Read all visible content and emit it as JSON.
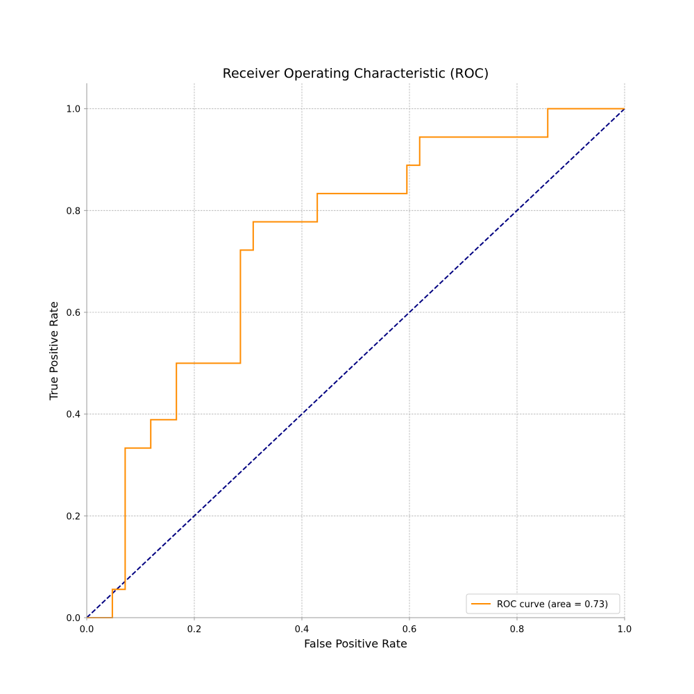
{
  "chart_data": {
    "type": "line",
    "title": "Receiver Operating Characteristic (ROC)",
    "xlabel": "False Positive Rate",
    "ylabel": "True Positive Rate",
    "xlim": [
      0.0,
      1.0
    ],
    "ylim": [
      0.0,
      1.05
    ],
    "xticks": [
      0.0,
      0.2,
      0.4,
      0.6,
      0.8,
      1.0
    ],
    "xtick_labels": [
      "0.0",
      "0.2",
      "0.4",
      "0.6",
      "0.8",
      "1.0"
    ],
    "yticks": [
      0.0,
      0.2,
      0.4,
      0.6,
      0.8,
      1.0
    ],
    "ytick_labels": [
      "0.0",
      "0.2",
      "0.4",
      "0.6",
      "0.8",
      "1.0"
    ],
    "grid": true,
    "legend_position": "lower-right",
    "series": [
      {
        "name": "ROC curve (area = 0.73)",
        "color": "#ff8c00",
        "style": "solid",
        "step": true,
        "x": [
          0.0,
          0.0476,
          0.0476,
          0.0714,
          0.0714,
          0.119,
          0.119,
          0.1667,
          0.1667,
          0.2857,
          0.2857,
          0.3095,
          0.3095,
          0.4286,
          0.4286,
          0.5952,
          0.5952,
          0.619,
          0.619,
          0.8571,
          0.8571,
          1.0
        ],
        "y": [
          0.0,
          0.0,
          0.0556,
          0.0556,
          0.3333,
          0.3333,
          0.3889,
          0.3889,
          0.5,
          0.5,
          0.7222,
          0.7222,
          0.7778,
          0.7778,
          0.8333,
          0.8333,
          0.8889,
          0.8889,
          0.9444,
          0.9444,
          1.0,
          1.0
        ]
      },
      {
        "color": "#000080",
        "style": "dashed",
        "x": [
          0.0,
          1.0
        ],
        "y": [
          0.0,
          1.0
        ]
      }
    ]
  }
}
